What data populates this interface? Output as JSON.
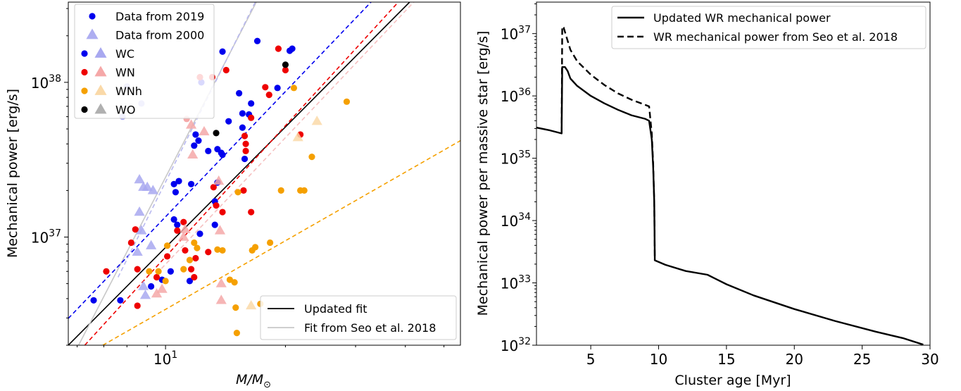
{
  "chart_data": [
    {
      "type": "scatter",
      "xlabel": "M/M_⊙",
      "xlabel_main": "M/M",
      "xlabel_sub": "⊙",
      "ylabel": "Mechanical power [erg/s]",
      "x_scale": "log",
      "y_scale": "log",
      "xlim": [
        5.7,
        55
      ],
      "ylim": [
        2e+36,
        3.3e+38
      ],
      "x_ticks": [
        {
          "value": 10,
          "label": "10",
          "sup": "1"
        }
      ],
      "y_ticks": [
        {
          "value": 1e+37,
          "label": "10",
          "sup": "37"
        },
        {
          "value": 1e+38,
          "label": "10",
          "sup": "38"
        }
      ],
      "legend_position": "upper left",
      "legend": [
        {
          "label": "Data from 2019",
          "marker": "circle",
          "color": "#0000ee"
        },
        {
          "label": "Data from 2000",
          "marker": "triangle",
          "color": "#a0a0ee"
        },
        {
          "label": "WC",
          "markers": [
            "circle",
            "triangle"
          ],
          "color": "#0000ee",
          "light": "#a8a8f0"
        },
        {
          "label": "WN",
          "markers": [
            "circle",
            "triangle"
          ],
          "color": "#ee0000",
          "light": "#f5a8a8"
        },
        {
          "label": "WNh",
          "markers": [
            "circle",
            "triangle"
          ],
          "color": "#f5a000",
          "light": "#fad9a8"
        },
        {
          "label": "WO",
          "markers": [
            "circle",
            "triangle"
          ],
          "color": "#000000",
          "light": "#b0b0b0"
        }
      ],
      "fit_legend_position": "lower right",
      "fit_legend": [
        {
          "label": "Updated fit",
          "color": "#000000"
        },
        {
          "label": "Fit from Seo et al. 2018",
          "color": "#c8c8c8"
        }
      ],
      "series": [
        {
          "name": "WC",
          "epoch": "2019",
          "marker": "circle",
          "color": "#0000ee",
          "points": [
            [
              6.6,
              3.9e+36
            ],
            [
              7.7,
              3.9e+36
            ],
            [
              9.2,
              4.8e+36
            ],
            [
              9.8,
              5.3e+36
            ],
            [
              10.3,
              6e+36
            ],
            [
              10.5,
              1.3e+37
            ],
            [
              10.7,
              1.2e+37
            ],
            [
              10.6,
              1.95e+37
            ],
            [
              10.5,
              2.2e+37
            ],
            [
              10.8,
              2.3e+37
            ],
            [
              11.6,
              2.2e+37
            ],
            [
              11.5,
              5.2e+36
            ],
            [
              12.2,
              1.05e+37
            ],
            [
              11.8,
              3.9e+37
            ],
            [
              11.9,
              4.6e+37
            ],
            [
              12.1,
              4.2e+37
            ],
            [
              12.3,
              1e+38
            ],
            [
              12.8,
              3.6e+37
            ],
            [
              13.3,
              1.2e+37
            ],
            [
              13.5,
              2.25e+37
            ],
            [
              13.5,
              3.7e+37
            ],
            [
              13.8,
              3.5e+37
            ],
            [
              13.9,
              3.4e+37
            ],
            [
              13.9,
              1.58e+38
            ],
            [
              13.3,
              1.7e+37
            ],
            [
              14.4,
              5.6e+37
            ],
            [
              15.3,
              8.5e+37
            ],
            [
              15.6,
              5.1e+37
            ],
            [
              15.6,
              6.3e+37
            ],
            [
              15.8,
              3.2e+37
            ],
            [
              16.2,
              6.2e+37
            ],
            [
              16.4,
              7.3e+37
            ],
            [
              17.0,
              1.85e+38
            ],
            [
              19.1,
              9.2e+37
            ],
            [
              20.5,
              1.6e+38
            ],
            [
              20.8,
              1.65e+38
            ]
          ]
        },
        {
          "name": "WN",
          "epoch": "2019",
          "marker": "circle",
          "color": "#ee0000",
          "points": [
            [
              7.1,
              6e+36
            ],
            [
              8.2,
              9.2e+36
            ],
            [
              8.4,
              1.12e+37
            ],
            [
              8.5,
              6.2e+36
            ],
            [
              8.5,
              3.6e+36
            ],
            [
              9.5,
              5.5e+36
            ],
            [
              10.1,
              7.5e+36
            ],
            [
              10.7,
              1.1e+37
            ],
            [
              11.1,
              1.25e+37
            ],
            [
              11.2,
              8.2e+36
            ],
            [
              11.6,
              6.2e+36
            ],
            [
              11.8,
              5.5e+36
            ],
            [
              11.9,
              7.3e+36
            ],
            [
              12.2,
              1.08e+38
            ],
            [
              12.8,
              8e+36
            ],
            [
              13.1,
              1.08e+38
            ],
            [
              13.2,
              2.1e+37
            ],
            [
              13.4,
              1.6e+37
            ],
            [
              13.9,
              1.45e+37
            ],
            [
              14.2,
              1.2e+38
            ],
            [
              15.7,
              2e+37
            ],
            [
              15.8,
              4.5e+37
            ],
            [
              15.9,
              4e+37
            ],
            [
              15.9,
              3.6e+37
            ],
            [
              16.4,
              1.45e+37
            ],
            [
              16.4,
              5.9e+37
            ],
            [
              17.8,
              9.3e+37
            ],
            [
              18.2,
              8.3e+37
            ],
            [
              19.2,
              1.65e+38
            ],
            [
              20.0,
              1.2e+38
            ],
            [
              21.8,
              4.6e+37
            ]
          ]
        },
        {
          "name": "WNh",
          "epoch": "2019",
          "marker": "circle",
          "color": "#f5a000",
          "points": [
            [
              9.1,
              6e+36
            ],
            [
              9.6,
              6e+36
            ],
            [
              10.0,
              5.2e+36
            ],
            [
              10.1,
              8.8e+36
            ],
            [
              11.1,
              6.2e+36
            ],
            [
              11.5,
              7.1e+36
            ],
            [
              11.8,
              9.2e+36
            ],
            [
              12.0,
              8.5e+36
            ],
            [
              13.5,
              8.3e+36
            ],
            [
              13.9,
              8.2e+36
            ],
            [
              14.5,
              5.3e+36
            ],
            [
              14.9,
              5.1e+36
            ],
            [
              15.0,
              3.5e+36
            ],
            [
              15.1,
              2.4e+36
            ],
            [
              15.2,
              1.95e+37
            ],
            [
              16.5,
              8.2e+36
            ],
            [
              16.8,
              8.6e+36
            ],
            [
              17.3,
              3.7e+36
            ],
            [
              18.3,
              9.2e+36
            ],
            [
              19.5,
              2e+37
            ],
            [
              21.0,
              9.2e+37
            ],
            [
              21.8,
              2e+37
            ],
            [
              22.3,
              2e+37
            ],
            [
              23.3,
              3.3e+37
            ],
            [
              28.5,
              7.5e+37
            ]
          ]
        },
        {
          "name": "WO",
          "epoch": "2019",
          "marker": "circle",
          "color": "#000000",
          "points": [
            [
              13.4,
              4.7e+37
            ],
            [
              20.0,
              1.3e+38
            ]
          ]
        },
        {
          "name": "WC",
          "epoch": "2000",
          "marker": "triangle",
          "color": "#a8a8f0",
          "points": [
            [
              8.6,
              2.35e+37
            ],
            [
              8.8,
              2.1e+37
            ],
            [
              9.0,
              2.1e+37
            ],
            [
              9.3,
              2e+37
            ],
            [
              8.6,
              1.45e+37
            ],
            [
              8.7,
              1.1e+37
            ],
            [
              8.5,
              8e+36
            ],
            [
              9.2,
              8.8e+36
            ],
            [
              8.8,
              4.8e+36
            ],
            [
              8.9,
              4.2e+36
            ]
          ]
        },
        {
          "name": "WC",
          "epoch": "2000",
          "marker": "circle",
          "color": "#a8a8f0",
          "points": [
            [
              7.8,
              6e+37
            ],
            [
              8.0,
              9.4e+37
            ],
            [
              8.7,
              7.3e+37
            ]
          ]
        },
        {
          "name": "WN",
          "epoch": "2000",
          "marker": "triangle",
          "color": "#f5a8a8",
          "points": [
            [
              9.5,
              4.3e+36
            ],
            [
              9.8,
              4.6e+36
            ],
            [
              11.1,
              1e+37
            ],
            [
              11.6,
              5.3e+37
            ],
            [
              11.7,
              3.4e+37
            ],
            [
              12.5,
              4.8e+37
            ],
            [
              13.6,
              2.3e+37
            ],
            [
              13.7,
              1.1e+37
            ],
            [
              13.8,
              5e+36
            ],
            [
              13.8,
              3.9e+36
            ],
            [
              11.2,
              1.12e+37
            ]
          ]
        },
        {
          "name": "WN",
          "epoch": "2000",
          "marker": "circle",
          "color": "#f5a8a8",
          "points": [
            [
              11.3,
              5.8e+37
            ]
          ]
        },
        {
          "name": "WNh",
          "epoch": "2000",
          "marker": "triangle",
          "color": "#fad9a8",
          "points": [
            [
              21.5,
              4.4e+37
            ],
            [
              24.0,
              5.6e+37
            ],
            [
              16.4,
              3.6e+36
            ]
          ]
        }
      ],
      "fit_lines": [
        {
          "name": "Updated fit",
          "color": "#000000",
          "style": "solid",
          "from": [
            5.7,
            2e+36
          ],
          "to": [
            41.0,
            3.3e+38
          ]
        },
        {
          "name": "Fit from Seo et al. 2018",
          "color": "#c8c8c8",
          "style": "solid",
          "from": [
            6.05,
            2e+36
          ],
          "to": [
            16.9,
            3.3e+38
          ]
        },
        {
          "name": "WC fit",
          "color": "#0000ee",
          "style": "dashed",
          "from": [
            5.7,
            2.98e+36
          ],
          "to": [
            32.8,
            3.3e+38
          ]
        },
        {
          "name": "WN fit",
          "color": "#ee0000",
          "style": "dashed",
          "from": [
            6.27,
            2e+36
          ],
          "to": [
            38.4,
            3.3e+38
          ]
        },
        {
          "name": "WNh fit",
          "color": "#f5a000",
          "style": "dashed",
          "from": [
            6.96,
            2e+36
          ],
          "to": [
            55.0,
            4.2e+37
          ]
        },
        {
          "name": "WC fit (Seo et al. 2018)",
          "color": "#b8b8f0",
          "style": "dashed",
          "from": [
            7.6,
            5.5e+36
          ],
          "to": [
            16.8,
            3.3e+38
          ]
        },
        {
          "name": "WN fit (Seo et al. 2018)",
          "color": "#f5c0c0",
          "style": "dashed",
          "from": [
            9.5,
            5.8e+36
          ],
          "to": [
            42.0,
            3.3e+38
          ]
        }
      ]
    },
    {
      "type": "line",
      "xlabel": "Cluster age [Myr]",
      "ylabel": "Mechanical power per massive star [erg/s]",
      "y_scale": "log",
      "xlim": [
        1,
        30
      ],
      "ylim": [
        1e+32,
        3.2e+37
      ],
      "x_ticks": [
        5,
        10,
        15,
        20,
        25,
        30
      ],
      "y_ticks": [
        {
          "value": 1e+32,
          "label": "10",
          "sup": "32"
        },
        {
          "value": 1e+33,
          "label": "10",
          "sup": "33"
        },
        {
          "value": 1e+34,
          "label": "10",
          "sup": "34"
        },
        {
          "value": 1e+35,
          "label": "10",
          "sup": "35"
        },
        {
          "value": 1e+36,
          "label": "10",
          "sup": "36"
        },
        {
          "value": 1e+37,
          "label": "10",
          "sup": "37"
        }
      ],
      "legend_position": "upper right",
      "series": [
        {
          "name": "Updated WR mechanical power",
          "style": "solid",
          "color": "#000000",
          "points": [
            [
              1,
              3.1e+35
            ],
            [
              2,
              2.8e+35
            ],
            [
              2.85,
              2.5e+35
            ],
            [
              2.9,
              2.9e+36
            ],
            [
              3.1,
              2.9e+36
            ],
            [
              3.3,
              2.5e+36
            ],
            [
              3.5,
              1.9e+36
            ],
            [
              4,
              1.45e+36
            ],
            [
              5,
              1e+36
            ],
            [
              6,
              7.6e+35
            ],
            [
              7,
              6e+35
            ],
            [
              8,
              4.9e+35
            ],
            [
              9,
              4.3e+35
            ],
            [
              9.3,
              4e+35
            ],
            [
              9.5,
              2e+35
            ],
            [
              9.6,
              7e+34
            ],
            [
              9.68,
              2e+34
            ],
            [
              9.72,
              2.3e+33
            ],
            [
              10.5,
              1.95e+33
            ],
            [
              12,
              1.55e+33
            ],
            [
              13.6,
              1.35e+33
            ],
            [
              15,
              9.5e+32
            ],
            [
              17,
              6.3e+32
            ],
            [
              20,
              3.8e+32
            ],
            [
              23,
              2.45e+32
            ],
            [
              26,
              1.65e+32
            ],
            [
              28,
              1.3e+32
            ],
            [
              29.5,
              1.02e+32
            ]
          ]
        },
        {
          "name": "WR mechanical power from Seo et al. 2018",
          "style": "dashed",
          "color": "#000000",
          "points": [
            [
              2.85,
              2.5e+35
            ],
            [
              2.9,
              1.3e+37
            ],
            [
              3.0,
              1.25e+37
            ],
            [
              3.2,
              9e+36
            ],
            [
              3.5,
              5.5e+36
            ],
            [
              4,
              3.6e+36
            ],
            [
              5,
              2.2e+36
            ],
            [
              6,
              1.5e+36
            ],
            [
              7,
              1.1e+36
            ],
            [
              8,
              8.7e+35
            ],
            [
              9,
              7.2e+35
            ],
            [
              9.3,
              6.8e+35
            ],
            [
              9.5,
              2.5e+35
            ],
            [
              9.6,
              8e+34
            ],
            [
              9.68,
              2e+34
            ],
            [
              9.72,
              2.3e+33
            ]
          ]
        }
      ]
    }
  ]
}
